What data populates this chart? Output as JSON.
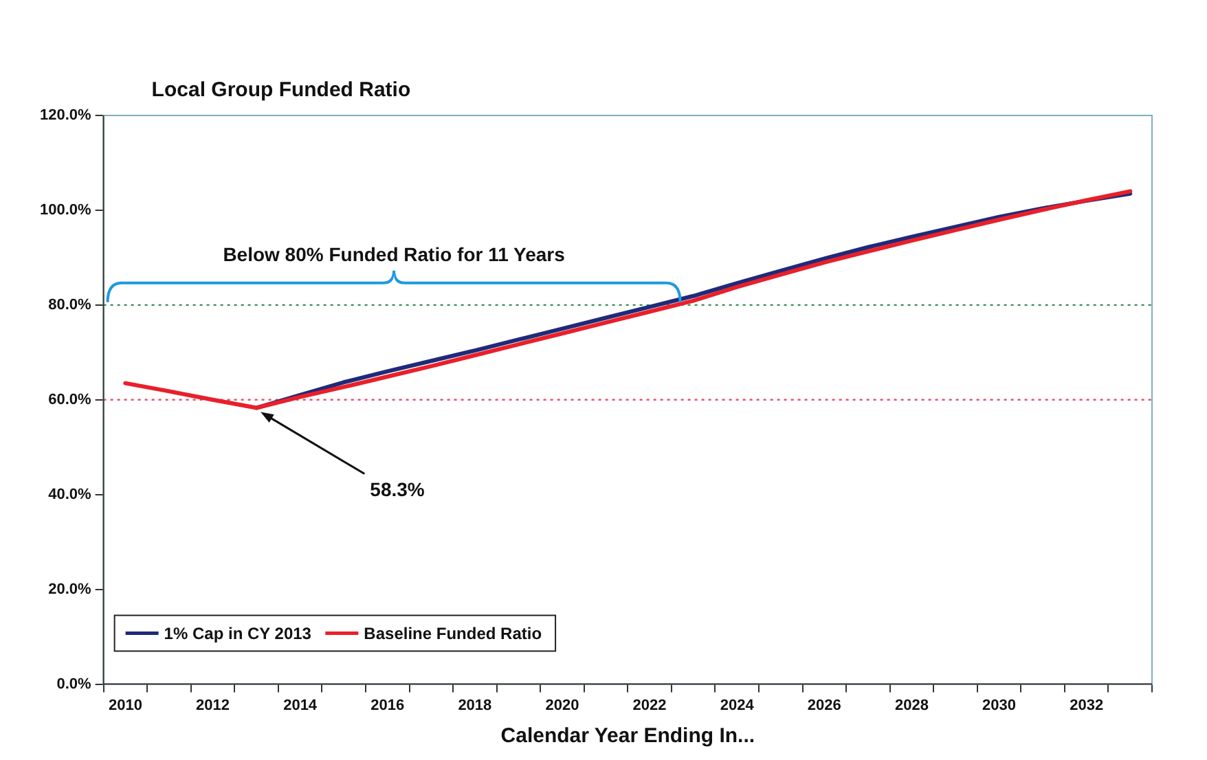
{
  "chart_data": {
    "type": "line",
    "title": "Local Group Funded Ratio",
    "xlabel": "Calendar Year Ending In...",
    "categories": [
      "2010",
      null,
      "2012",
      null,
      "2014",
      null,
      "2016",
      null,
      "2018",
      null,
      "2020",
      null,
      "2022",
      null,
      "2024",
      null,
      "2026",
      null,
      "2028",
      null,
      "2030",
      null,
      "2032",
      null
    ],
    "series": [
      {
        "name": "1% Cap in CY 2013",
        "color": "#1f2a7a",
        "values": [
          null,
          null,
          null,
          58.3,
          61.0,
          63.7,
          66.0,
          68.2,
          70.4,
          72.7,
          75.0,
          77.3,
          79.6,
          81.9,
          84.6,
          87.2,
          89.8,
          92.2,
          94.4,
          96.5,
          98.6,
          100.4,
          102.0,
          103.5
        ]
      },
      {
        "name": "Baseline Funded Ratio",
        "color": "#e8202a",
        "values": [
          63.5,
          61.8,
          60.0,
          58.3,
          60.6,
          62.7,
          64.9,
          67.1,
          69.4,
          71.7,
          74.0,
          76.3,
          78.6,
          80.9,
          83.8,
          86.4,
          89.0,
          91.3,
          93.6,
          95.8,
          98.0,
          100.1,
          102.1,
          104.0
        ]
      }
    ],
    "ylim": [
      0,
      120
    ],
    "yticks": [
      {
        "value": 0,
        "label": "0.0%"
      },
      {
        "value": 20,
        "label": "20.0%"
      },
      {
        "value": 40,
        "label": "40.0%"
      },
      {
        "value": 60,
        "label": "60.0%"
      },
      {
        "value": 80,
        "label": "80.0%"
      },
      {
        "value": 100,
        "label": "100.0%"
      },
      {
        "value": 120,
        "label": "120.0%"
      }
    ],
    "ref_lines": [
      {
        "axis": "y",
        "value": 80,
        "color": "#3a8a5a",
        "line_style": "dotted"
      },
      {
        "axis": "y",
        "value": 60,
        "color": "#e8506a",
        "line_style": "dotted"
      }
    ],
    "annotations": [
      "Below 80% Funded Ratio for 11 Years",
      "58.3%"
    ],
    "grid": false,
    "legend": "bottom left",
    "marker": "none",
    "line_style": "solid"
  }
}
